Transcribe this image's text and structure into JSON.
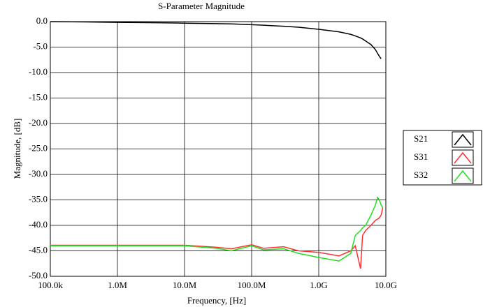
{
  "chart_data": {
    "type": "line",
    "title": "S-Parameter Magnitude",
    "x_label": "Frequency, [Hz]",
    "y_label": "Magnitude, [dB]",
    "xscale": "log",
    "grid": true,
    "legend": "right",
    "xlim": [
      100000,
      10000000000
    ],
    "xticks": [
      {
        "value": 100000,
        "label": "100.0k"
      },
      {
        "value": 1000000,
        "label": "1.0M"
      },
      {
        "value": 10000000,
        "label": "10.0M"
      },
      {
        "value": 100000000,
        "label": "100.0M"
      },
      {
        "value": 1000000000,
        "label": "1.0G"
      },
      {
        "value": 10000000000,
        "label": "10.0G"
      }
    ],
    "ylim": [
      -50,
      0
    ],
    "yticks": [
      {
        "value": 0,
        "label": "0.0"
      },
      {
        "value": -5,
        "label": "-5.0"
      },
      {
        "value": -10,
        "label": "-10.0"
      },
      {
        "value": -15,
        "label": "-15.0"
      },
      {
        "value": -20,
        "label": "-20.0"
      },
      {
        "value": -25,
        "label": "-25.0"
      },
      {
        "value": -30,
        "label": "-30.0"
      },
      {
        "value": -35,
        "label": "-35.0"
      },
      {
        "value": -40,
        "label": "-40.0"
      },
      {
        "value": -45,
        "label": "-45.0"
      },
      {
        "value": -50,
        "label": "-50.0"
      }
    ],
    "x": [
      100000,
      300000,
      1000000,
      3000000,
      10000000,
      30000000,
      50000000,
      100000000,
      150000000,
      300000000,
      500000000,
      1000000000,
      2000000000,
      3000000000,
      3500000000,
      4200000000,
      4500000000,
      5000000000,
      6000000000,
      7000000000,
      7500000000,
      8000000000,
      8500000000,
      9000000000
    ],
    "series": [
      {
        "name": "S21",
        "color": "#000000",
        "values": [
          0,
          -0.05,
          -0.15,
          -0.2,
          -0.3,
          -0.4,
          -0.45,
          -0.6,
          -0.7,
          -0.9,
          -1.1,
          -1.5,
          -2.0,
          -2.5,
          -2.8,
          -3.2,
          -3.4,
          -3.8,
          -4.5,
          -5.5,
          -6.2,
          -6.8,
          -7.3,
          null
        ]
      },
      {
        "name": "S31",
        "color": "#ff3030",
        "values": [
          -43.9,
          -43.9,
          -43.9,
          -43.9,
          -43.9,
          -44.3,
          -44.6,
          -43.8,
          -44.5,
          -44.2,
          -45,
          -45.3,
          -46,
          -45,
          -44,
          -48.5,
          -42,
          -41,
          -40,
          -39,
          -38.8,
          -38.5,
          -38,
          -36.5
        ]
      },
      {
        "name": "S32",
        "color": "#20e020",
        "values": [
          -44,
          -44,
          -44,
          -44,
          -44,
          -44.5,
          -45,
          -44,
          -44.8,
          -44.6,
          -45.5,
          -46.3,
          -47,
          -45.5,
          -42,
          -41,
          -40.5,
          -40,
          -38,
          -36,
          -34.5,
          -35,
          -36,
          -36.5
        ]
      }
    ]
  }
}
